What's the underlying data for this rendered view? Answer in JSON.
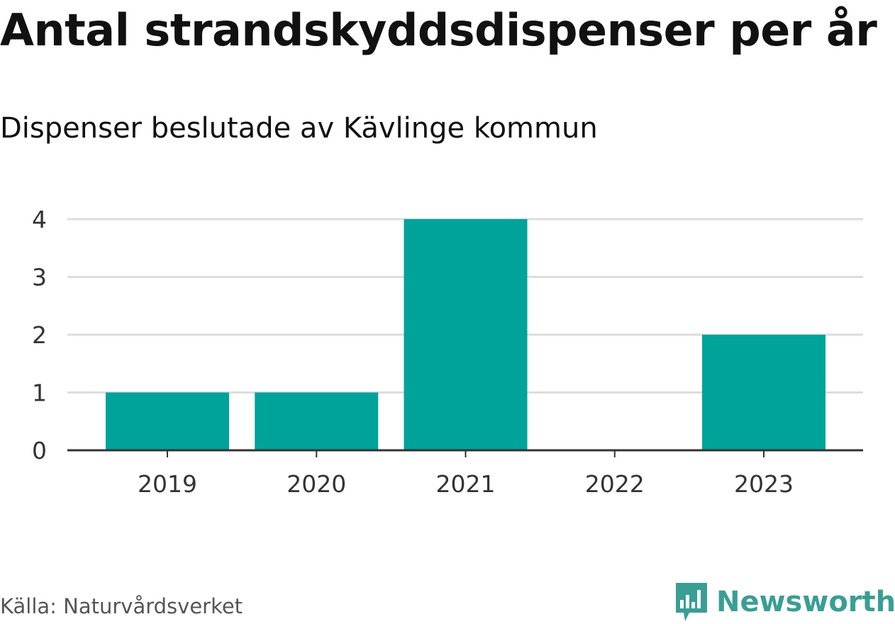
{
  "title": "Antal strandskyddsdispenser per år",
  "subtitle": "Dispenser beslutade av Kävlinge kommun",
  "source": "Källa: Naturvårdsverket",
  "brand": {
    "name": "Newsworthy",
    "color": "#3a9e94",
    "icon": "bar-chart-speech-bubble-icon"
  },
  "colors": {
    "bar": "#00a39a",
    "grid": "#dddddd",
    "axis": "#333333"
  },
  "chart_data": {
    "type": "bar",
    "title": "Antal strandskyddsdispenser per år",
    "subtitle": "Dispenser beslutade av Kävlinge kommun",
    "categories": [
      "2019",
      "2020",
      "2021",
      "2022",
      "2023"
    ],
    "values": [
      1,
      1,
      4,
      0,
      2
    ],
    "xlabel": "",
    "ylabel": "",
    "ylim": [
      0,
      4
    ],
    "yticks": [
      "0",
      "1",
      "2",
      "3",
      "4"
    ],
    "grid": true,
    "legend": "none"
  }
}
